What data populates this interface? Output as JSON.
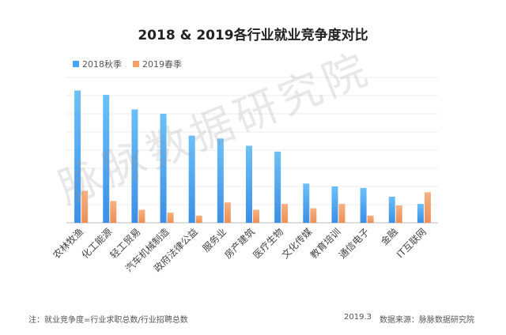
{
  "chart_data": {
    "type": "bar",
    "title": "2018 & 2019各行业就业竞争度对比",
    "categories": [
      "农林牧渔",
      "化工能源",
      "轻工贸易",
      "汽车机械制造",
      "政府法律公益",
      "服务业",
      "房产建筑",
      "医疗生物",
      "文化传媒",
      "教育培训",
      "通信电子",
      "金融",
      "IT互联网"
    ],
    "series": [
      {
        "name": "2018秋季",
        "color": "#4aa3ee",
        "values": [
          91,
          88,
          78,
          75,
          60,
          58,
          53,
          49,
          27,
          25,
          24,
          18,
          13
        ]
      },
      {
        "name": "2019春季",
        "color": "#f0a068",
        "values": [
          22,
          15,
          9,
          7,
          5,
          14,
          9,
          13,
          10,
          13,
          5,
          12,
          21
        ]
      }
    ],
    "ylim": [
      0,
      100
    ],
    "grid": true,
    "legend_position": "top-left",
    "xlabel": "",
    "ylabel": ""
  },
  "watermark": "脉脉数据研究院",
  "footnote": "注：就业竞争度=行业求职总数/行业招聘总数",
  "date": "2019.3",
  "source": "数据来源：脉脉数据研究院"
}
